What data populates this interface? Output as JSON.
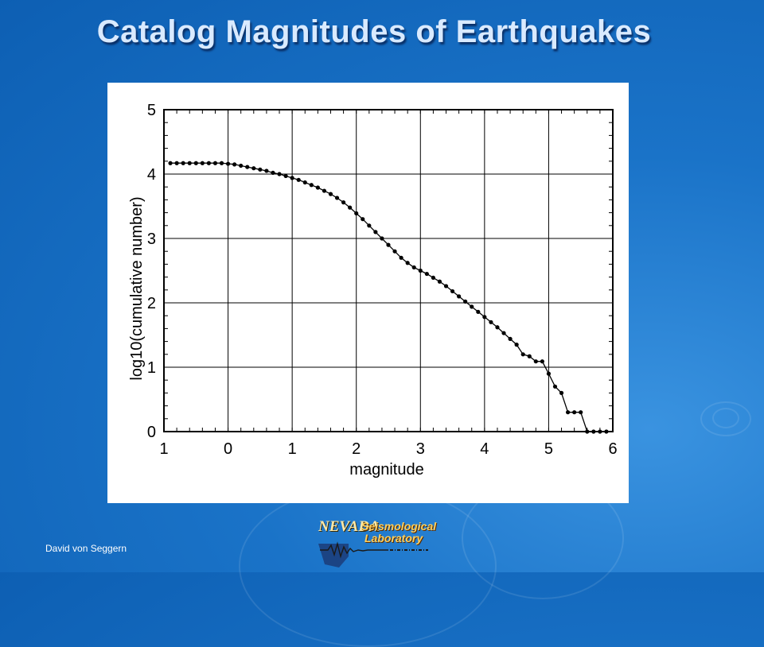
{
  "slide": {
    "title": "Catalog Magnitudes of Earthquakes",
    "footer_author": "David von Seggern",
    "logo": {
      "word1": "NEVADA",
      "word2": "Seismological",
      "word3": "Laboratory"
    }
  },
  "colors": {
    "background": "#1a73c8",
    "title": "#d9eaff",
    "plot_line": "#000000",
    "grid": "#000000"
  },
  "chart_data": {
    "type": "line",
    "xlabel": "magnitude",
    "ylabel": "log10(cumulative number)",
    "xlim": [
      -1,
      6
    ],
    "ylim": [
      0,
      5
    ],
    "x_ticks": [
      -1,
      0,
      1,
      2,
      3,
      4,
      5,
      6
    ],
    "x_tick_labels": [
      "1",
      "0",
      "1",
      "2",
      "3",
      "4",
      "5",
      "6"
    ],
    "y_ticks": [
      0,
      1,
      2,
      3,
      4,
      5
    ],
    "y_tick_labels": [
      "0",
      "1",
      "2",
      "3",
      "4",
      "5"
    ],
    "grid": true,
    "markers": true,
    "series": [
      {
        "x": [
          -0.9,
          -0.8,
          -0.7,
          -0.6,
          -0.5,
          -0.4,
          -0.3,
          -0.2,
          -0.1,
          0.0,
          0.1,
          0.2,
          0.3,
          0.4,
          0.5,
          0.6,
          0.7,
          0.8,
          0.9,
          1.0,
          1.1,
          1.2,
          1.3,
          1.4,
          1.5,
          1.6,
          1.7,
          1.8,
          1.9,
          2.0,
          2.1,
          2.2,
          2.3,
          2.4,
          2.5,
          2.6,
          2.7,
          2.8,
          2.9,
          3.0,
          3.1,
          3.2,
          3.3,
          3.4,
          3.5,
          3.6,
          3.7,
          3.8,
          3.9,
          4.0,
          4.1,
          4.2,
          4.3,
          4.4,
          4.5,
          4.6,
          4.7,
          4.8,
          4.9,
          5.0,
          5.1,
          5.2,
          5.3,
          5.4,
          5.5,
          5.6,
          5.7,
          5.8,
          5.9
        ],
        "y": [
          4.17,
          4.17,
          4.17,
          4.17,
          4.17,
          4.17,
          4.17,
          4.17,
          4.17,
          4.16,
          4.15,
          4.13,
          4.11,
          4.09,
          4.07,
          4.05,
          4.02,
          4.0,
          3.97,
          3.94,
          3.91,
          3.87,
          3.83,
          3.79,
          3.74,
          3.69,
          3.63,
          3.56,
          3.48,
          3.39,
          3.3,
          3.2,
          3.1,
          3.0,
          2.9,
          2.8,
          2.7,
          2.62,
          2.55,
          2.5,
          2.45,
          2.39,
          2.33,
          2.26,
          2.18,
          2.1,
          2.02,
          1.94,
          1.86,
          1.78,
          1.7,
          1.62,
          1.53,
          1.44,
          1.35,
          1.2,
          1.17,
          1.09,
          1.09,
          0.9,
          0.7,
          0.6,
          0.3,
          0.3,
          0.3,
          0.0,
          0.0,
          0.0,
          0.0
        ]
      }
    ]
  }
}
